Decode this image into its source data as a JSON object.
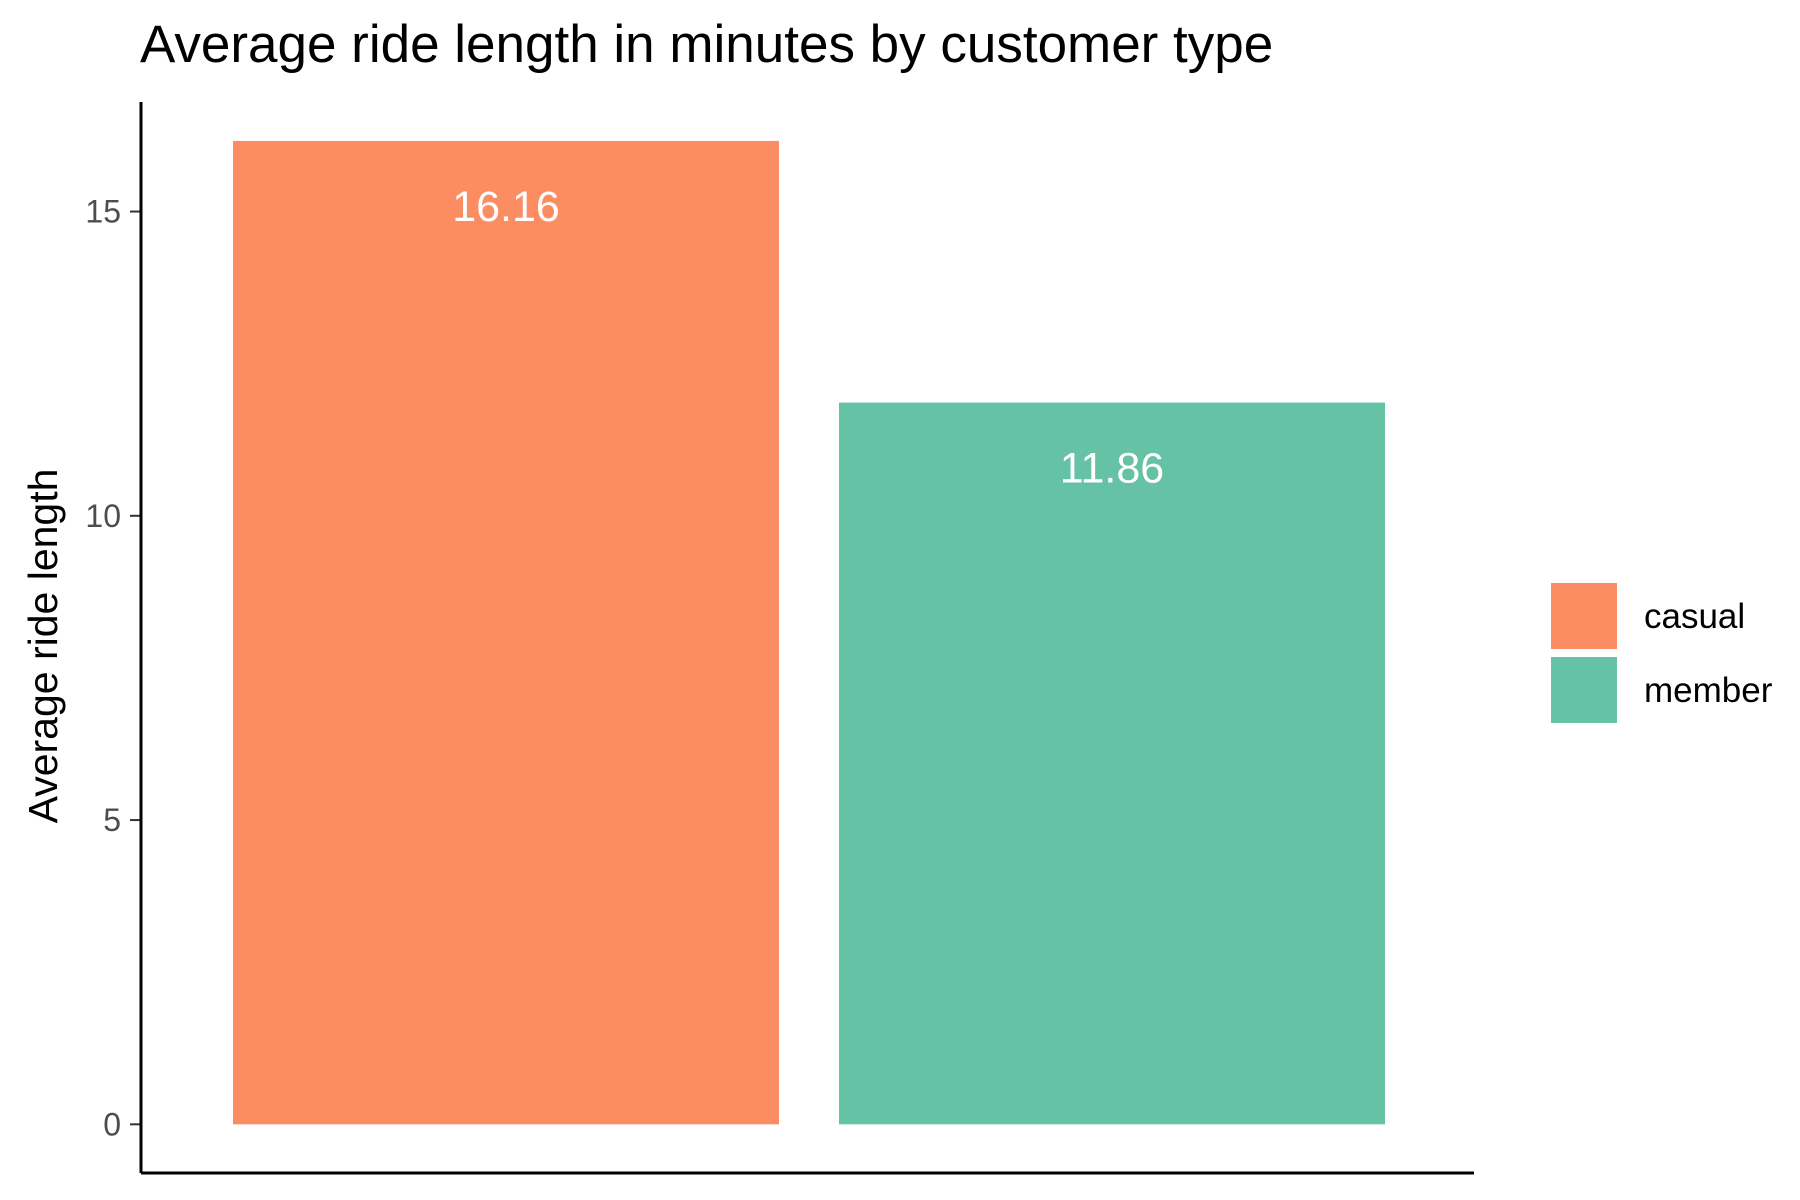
{
  "chart_data": {
    "type": "bar",
    "title": "Average ride length in minutes by customer type",
    "xlabel": "",
    "ylabel": "Average ride length",
    "categories": [
      "casual",
      "member"
    ],
    "values": [
      16.16,
      11.86
    ],
    "value_labels": [
      "16.16",
      "11.86"
    ],
    "colors": [
      "#fc8d62",
      "#66c2a5"
    ],
    "ylim": [
      -0.8,
      16.8
    ],
    "yticks": [
      0,
      5,
      10,
      15
    ],
    "ytick_labels": [
      "0",
      "5",
      "10",
      "15"
    ],
    "grid": false,
    "legend": {
      "placement": "right",
      "entries": [
        "casual",
        "member"
      ]
    },
    "value_label_color": "#ffffff"
  }
}
